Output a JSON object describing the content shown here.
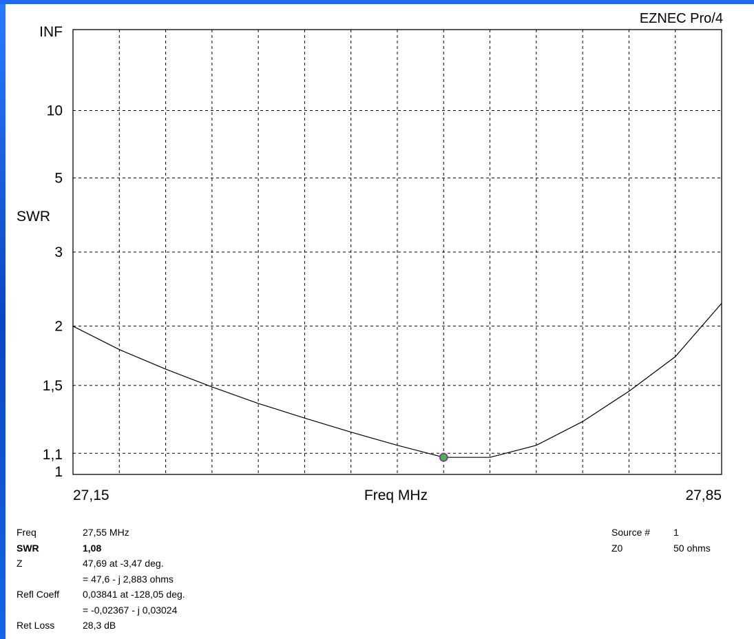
{
  "app_title": "EZNEC Pro/4",
  "chart_data": {
    "type": "line",
    "title": "",
    "xlabel": "Freq MHz",
    "ylabel": "SWR",
    "xlim": [
      27.15,
      27.85
    ],
    "x_tick_labels": [
      "27,15",
      "27,85"
    ],
    "y_scale": "swr",
    "y_ticks": [
      {
        "label": "INF",
        "value": null
      },
      {
        "label": "10",
        "value": 10
      },
      {
        "label": "5",
        "value": 5
      },
      {
        "label": "3",
        "value": 3
      },
      {
        "label": "2",
        "value": 2
      },
      {
        "label": "1,5",
        "value": 1.5
      },
      {
        "label": "1,1",
        "value": 1.1
      },
      {
        "label": "1",
        "value": 1
      }
    ],
    "grid": true,
    "series": [
      {
        "x": [
          27.15,
          27.2,
          27.25,
          27.3,
          27.35,
          27.4,
          27.45,
          27.5,
          27.55,
          27.6,
          27.65,
          27.7,
          27.75,
          27.8,
          27.85
        ],
        "y": [
          2.0,
          1.78,
          1.62,
          1.49,
          1.38,
          1.29,
          1.21,
          1.14,
          1.08,
          1.08,
          1.14,
          1.27,
          1.46,
          1.72,
          2.25
        ],
        "color": "#000000"
      }
    ],
    "marker": {
      "x": 27.55,
      "y": 1.08,
      "color": "#3cc040",
      "edge": "#8a3aa8"
    }
  },
  "readout": {
    "freq": {
      "label": "Freq",
      "value": "27,55 MHz"
    },
    "swr": {
      "label": "SWR",
      "value": "1,08"
    },
    "z": {
      "label": "Z",
      "value": "47,69 at -3,47 deg.",
      "value2": "= 47,6 - j 2,883 ohms"
    },
    "refl": {
      "label": "Refl Coeff",
      "value": "0,03841 at -128,05 deg.",
      "value2": "= -0,02367 - j 0,03024"
    },
    "ret_loss": {
      "label": "Ret Loss",
      "value": "28,3 dB"
    }
  },
  "source": {
    "source_num": {
      "label": "Source #",
      "value": "1"
    },
    "z0": {
      "label": "Z0",
      "value": "50 ohms"
    }
  }
}
